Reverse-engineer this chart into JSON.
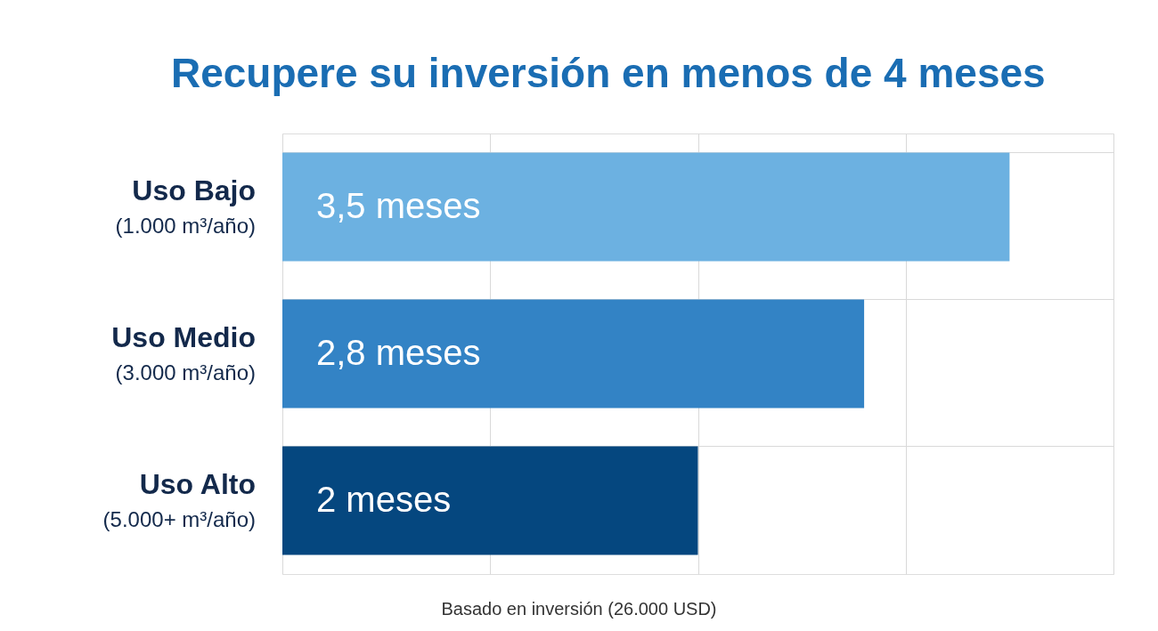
{
  "chart_data": {
    "type": "bar",
    "orientation": "horizontal",
    "title": "Recupere su inversión en menos de 4 meses",
    "categories": [
      "Uso Bajo\n(1.000 m³/año)",
      "Uso Medio\n(3.000 m³/año)",
      "Uso Alto\n(5.000+ m³/año)"
    ],
    "values": [
      3.5,
      2.8,
      2
    ],
    "colors": [
      "#6cb1e1",
      "#3383c5",
      "#05477f"
    ],
    "value_labels": [
      "3,5 meses",
      "2,8 meses",
      "2 meses"
    ],
    "xlim": [
      0,
      4
    ],
    "xticks": [
      {
        "value": 0,
        "label": null
      },
      {
        "value": 1,
        "label": null
      },
      {
        "value": 2,
        "label": null
      },
      {
        "value": 3,
        "label": null
      },
      {
        "value": 4,
        "label": null
      }
    ],
    "tick_labels": "y",
    "grid": true,
    "annotations": [
      "Basado en inversión (26.000 USD)"
    ]
  }
}
